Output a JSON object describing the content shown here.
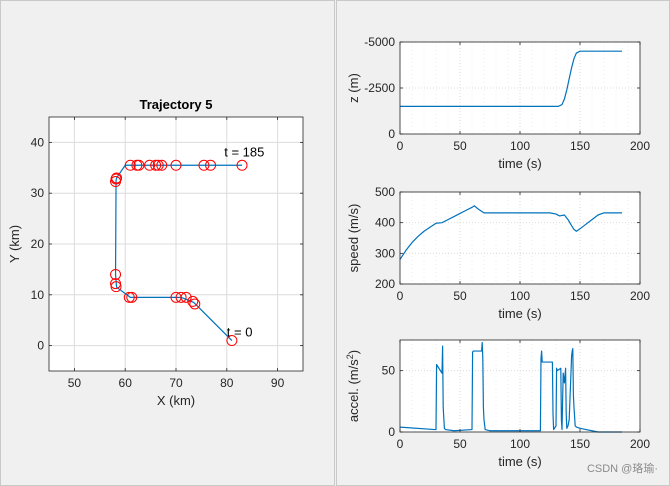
{
  "watermark": "CSDN @珞瑜·",
  "chart_data": [
    {
      "type": "scatter",
      "title": "Trajectory 5",
      "xlabel": "X (km)",
      "ylabel": "Y (km)",
      "xlim": [
        45,
        95
      ],
      "ylim": [
        -5,
        45
      ],
      "xticks": [
        50,
        60,
        70,
        80,
        90
      ],
      "yticks": [
        0,
        10,
        20,
        30,
        40
      ],
      "grid": true,
      "series": [
        {
          "name": "path",
          "style": "line",
          "color": "#0072bd",
          "x": [
            81,
            73.5,
            71,
            70,
            61,
            58.3,
            58.1,
            58.2,
            58.3,
            60,
            61,
            83
          ],
          "y": [
            1,
            8.5,
            9.5,
            9.5,
            9.5,
            11.5,
            14,
            32.5,
            33,
            35.5,
            35.5,
            35.5
          ]
        },
        {
          "name": "markers",
          "style": "marker-circle",
          "color": "#ff0000",
          "x": [
            81,
            73.7,
            73.3,
            72,
            71,
            70,
            61.3,
            60.8,
            58.2,
            58.1,
            58.1,
            58.1,
            58.2,
            58.3,
            61,
            62.3,
            62.7,
            64.8,
            66,
            66.5,
            67.2,
            70,
            75.5,
            76.8,
            83
          ],
          "y": [
            1,
            8.2,
            8.7,
            9.5,
            9.5,
            9.5,
            9.5,
            9.5,
            11.6,
            12.2,
            14,
            32.3,
            32.8,
            33,
            35.5,
            35.5,
            35.5,
            35.5,
            35.5,
            35.5,
            35.5,
            35.5,
            35.5,
            35.5,
            35.5
          ]
        }
      ],
      "annotations": [
        {
          "text": "t = 0",
          "x": 80,
          "y": 1.8
        },
        {
          "text": "t = 185",
          "x": 79.5,
          "y": 37.2
        }
      ]
    },
    {
      "type": "line",
      "title": "",
      "xlabel": "time (s)",
      "ylabel": "z (m)",
      "xlim": [
        0,
        200
      ],
      "ylim": [
        0,
        -5000
      ],
      "xticks": [
        0,
        50,
        100,
        150,
        200
      ],
      "yticks": [
        -5000,
        -2500,
        0
      ],
      "ytick_labels": [
        "-5000",
        "-2500",
        "0"
      ],
      "grid": true,
      "series": [
        {
          "name": "z",
          "color": "#0072bd",
          "x": [
            0,
            132,
            135,
            137,
            139,
            141,
            143,
            145,
            147,
            150,
            155,
            185
          ],
          "y": [
            -1500,
            -1500,
            -1600,
            -1900,
            -2400,
            -3000,
            -3600,
            -4100,
            -4400,
            -4500,
            -4500,
            -4500
          ]
        }
      ]
    },
    {
      "type": "line",
      "title": "",
      "xlabel": "time (s)",
      "ylabel": "speed (m/s)",
      "xlim": [
        0,
        200
      ],
      "ylim": [
        200,
        500
      ],
      "xticks": [
        0,
        50,
        100,
        150,
        200
      ],
      "yticks": [
        200,
        300,
        400,
        500
      ],
      "grid": true,
      "series": [
        {
          "name": "speed",
          "color": "#0072bd",
          "x": [
            0,
            5,
            10,
            15,
            20,
            25,
            30,
            35,
            40,
            45,
            50,
            55,
            60,
            62,
            65,
            70,
            100,
            125,
            130,
            133,
            137,
            140,
            143,
            145,
            147,
            150,
            155,
            160,
            165,
            170,
            175,
            185
          ],
          "y": [
            280,
            310,
            335,
            355,
            372,
            385,
            398,
            400,
            410,
            420,
            430,
            440,
            450,
            455,
            445,
            432,
            432,
            432,
            428,
            422,
            425,
            410,
            390,
            378,
            372,
            380,
            395,
            410,
            425,
            432,
            432,
            432
          ]
        }
      ]
    },
    {
      "type": "line",
      "title": "",
      "xlabel": "time (s)",
      "ylabel": "accel. (m/s",
      "ylabel_superscript": "2",
      "ylabel_suffix": ")",
      "xlim": [
        0,
        200
      ],
      "ylim": [
        0,
        75
      ],
      "xticks": [
        0,
        50,
        100,
        150,
        200
      ],
      "yticks": [
        0,
        50
      ],
      "grid": true,
      "series": [
        {
          "name": "accel",
          "color": "#0072bd",
          "x": [
            0,
            29,
            30,
            30.5,
            35,
            35.5,
            36,
            37,
            38,
            45,
            60,
            60.5,
            61,
            68,
            68.5,
            69,
            69.5,
            70,
            70.5,
            71,
            75,
            117,
            117.5,
            118,
            118.5,
            119,
            127,
            127.5,
            128,
            130,
            130.5,
            131,
            134,
            134.5,
            135,
            136,
            137,
            138,
            138.5,
            139,
            140,
            141,
            143,
            143.5,
            144,
            144.5,
            145,
            146,
            147,
            150,
            155,
            160,
            165,
            175,
            185
          ],
          "y": [
            4,
            2,
            2,
            55,
            48,
            70,
            20,
            3,
            2,
            1,
            2,
            65,
            66,
            66,
            73,
            60,
            20,
            10,
            6,
            2,
            1,
            1,
            60,
            66,
            57,
            57,
            57,
            15,
            2,
            5,
            52,
            50,
            52,
            10,
            2,
            48,
            40,
            52,
            15,
            3,
            5,
            10,
            62,
            66,
            68,
            30,
            20,
            5,
            4,
            3,
            2,
            1,
            0,
            0,
            0
          ]
        }
      ]
    }
  ]
}
